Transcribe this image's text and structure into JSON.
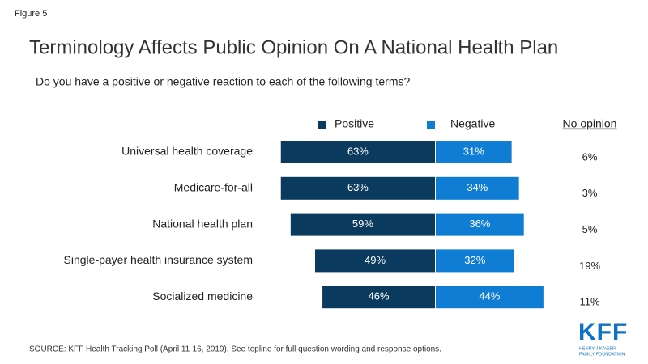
{
  "chart_data": {
    "type": "diverging_bar",
    "figure_label": "Figure 5",
    "title": "Terminology Affects Public Opinion On A National Health Plan",
    "subtitle": "Do you have a positive or negative reaction to each of the following terms?",
    "categories": [
      "Universal health coverage",
      "Medicare-for-all",
      "National health plan",
      "Single-payer health insurance system",
      "Socialized medicine"
    ],
    "series": [
      {
        "name": "Positive",
        "color": "#0b3a5f",
        "values": [
          63,
          63,
          59,
          49,
          46
        ],
        "value_labels": [
          "63%",
          "63%",
          "59%",
          "49%",
          "46%"
        ]
      },
      {
        "name": "Negative",
        "color": "#0e7dd3",
        "values": [
          31,
          34,
          36,
          32,
          44
        ],
        "value_labels": [
          "31%",
          "34%",
          "36%",
          "32%",
          "44%"
        ]
      }
    ],
    "no_opinion": {
      "name": "No opinion",
      "values": [
        6,
        3,
        5,
        19,
        11
      ],
      "value_labels": [
        "6%",
        "3%",
        "5%",
        "19%",
        "11%"
      ]
    },
    "source": "SOURCE: KFF Health Tracking Poll (April 11-16, 2019). See topline for full question wording and response options.",
    "logo": {
      "text": "KFF",
      "subtext": [
        "HENRY J KAISER",
        "FAMILY FOUNDATION"
      ]
    }
  }
}
